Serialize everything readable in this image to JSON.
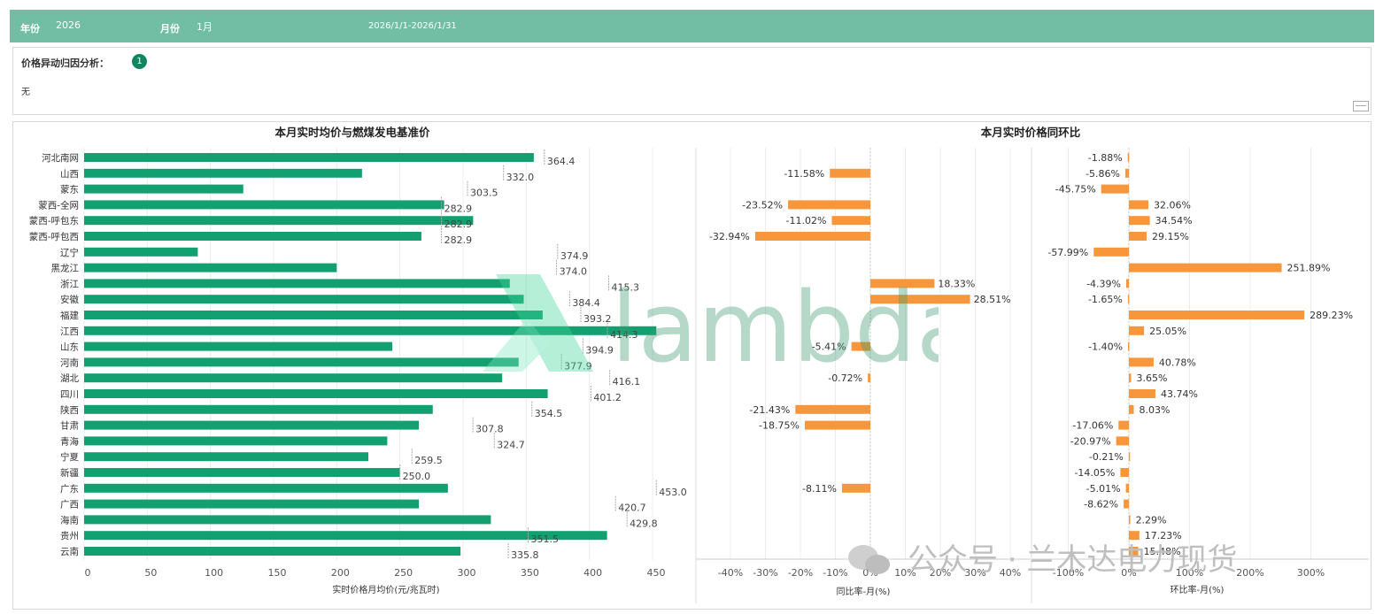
{
  "filters": {
    "year_label": "年份",
    "year_value": "2026",
    "month_label": "月份",
    "month_value": "1月",
    "date_range": "2026/1/1-2026/1/31"
  },
  "analysis": {
    "title": "价格异动归因分析：",
    "badge": "1",
    "content": "无"
  },
  "watermark": {
    "text": "lambda",
    "account": "公众号 · 兰木达电力现货"
  },
  "colors": {
    "bar_green": "#12a070",
    "bar_orange": "#f7963a",
    "header_green": "#72bea5"
  },
  "chart_data": [
    {
      "type": "bar",
      "orientation": "horizontal",
      "title": "本月实时均价与燃煤发电基准价",
      "xlabel": "实时价格月均价(元/兆瓦时)",
      "xlim": [
        0,
        450
      ],
      "xticks": [
        0,
        50,
        100,
        150,
        200,
        250,
        300,
        350,
        400,
        450
      ],
      "categories": [
        "河北南网",
        "山西",
        "蒙东",
        "蒙西-全网",
        "蒙西-呼包东",
        "蒙西-呼包西",
        "辽宁",
        "黑龙江",
        "浙江",
        "安徽",
        "福建",
        "江西",
        "山东",
        "河南",
        "湖北",
        "四川",
        "陕西",
        "甘肃",
        "青海",
        "宁夏",
        "新疆",
        "广东",
        "广西",
        "海南",
        "贵州",
        "云南"
      ],
      "series": [
        {
          "name": "实时价格月均价",
          "values": [
            356,
            220,
            126,
            285,
            308,
            267,
            90,
            200,
            337,
            348,
            363,
            453,
            244,
            344,
            331,
            367,
            276,
            265,
            240,
            225,
            250,
            288,
            265,
            322,
            414,
            298
          ]
        },
        {
          "name": "燃煤发电基准价",
          "values": [
            364.4,
            332.0,
            303.5,
            282.9,
            282.9,
            282.9,
            374.9,
            374.0,
            415.3,
            384.4,
            393.2,
            414.3,
            394.9,
            377.9,
            416.1,
            401.2,
            354.5,
            307.8,
            324.7,
            259.5,
            250.0,
            453.0,
            420.7,
            429.8,
            351.5,
            335.8
          ]
        }
      ],
      "labels": [
        "364.4",
        "332.0",
        "303.5",
        "282.9",
        "282.9",
        "282.9",
        "374.9",
        "374.0",
        "415.3",
        "384.4",
        "393.2",
        "414.3",
        "394.9",
        "377.9",
        "416.1",
        "401.2",
        "354.5",
        "307.8",
        "324.7",
        "259.5",
        "250.0",
        "453.0",
        "420.7",
        "429.8",
        "351.5",
        "335.8"
      ]
    },
    {
      "type": "bar",
      "orientation": "horizontal",
      "title": "本月实时价格同环比",
      "xlabel": "同比率-月(%)",
      "xlim": [
        -50,
        45
      ],
      "xticks": [
        -40,
        -30,
        -20,
        -10,
        0,
        10,
        20,
        30,
        40
      ],
      "xtick_labels": [
        "-40%",
        "-30%",
        "-20%",
        "-10%",
        "0%",
        "10%",
        "20%",
        "30%",
        "40%"
      ],
      "values": [
        null,
        -11.58,
        null,
        -23.52,
        -11.02,
        -32.94,
        null,
        null,
        18.33,
        28.51,
        null,
        null,
        -5.41,
        null,
        -0.72,
        null,
        -21.43,
        -18.75,
        null,
        null,
        null,
        -8.11,
        null,
        null,
        null,
        null
      ],
      "labels": [
        "",
        "-11.58%",
        "",
        "-23.52%",
        "-11.02%",
        "-32.94%",
        "",
        "",
        "18.33%",
        "28.51%",
        "",
        "",
        "-5.41%",
        "",
        "-0.72%",
        "",
        "-21.43%",
        "-18.75%",
        "",
        "",
        "",
        "-8.11%",
        "",
        "",
        "",
        ""
      ]
    },
    {
      "type": "bar",
      "orientation": "horizontal",
      "title": "",
      "xlabel": "环比率-月(%)",
      "xlim": [
        -140,
        340
      ],
      "xticks": [
        -100,
        0,
        100,
        200,
        300
      ],
      "xtick_labels": [
        "-100%",
        "0%",
        "100%",
        "200%",
        "300%"
      ],
      "values": [
        -1.88,
        -5.86,
        -45.75,
        32.06,
        34.54,
        29.15,
        -57.99,
        251.89,
        -4.39,
        -1.65,
        289.23,
        25.05,
        -1.4,
        40.78,
        3.65,
        43.74,
        8.03,
        -17.06,
        -20.97,
        -0.21,
        -14.05,
        -5.01,
        -8.62,
        2.29,
        17.23,
        15.48
      ],
      "labels": [
        "-1.88%",
        "-5.86%",
        "-45.75%",
        "32.06%",
        "34.54%",
        "29.15%",
        "-57.99%",
        "251.89%",
        "-4.39%",
        "-1.65%",
        "289.23%",
        "25.05%",
        "-1.40%",
        "40.78%",
        "3.65%",
        "43.74%",
        "8.03%",
        "-17.06%",
        "-20.97%",
        "-0.21%",
        "-14.05%",
        "-5.01%",
        "-8.62%",
        "2.29%",
        "17.23%",
        "15.48%"
      ]
    }
  ]
}
